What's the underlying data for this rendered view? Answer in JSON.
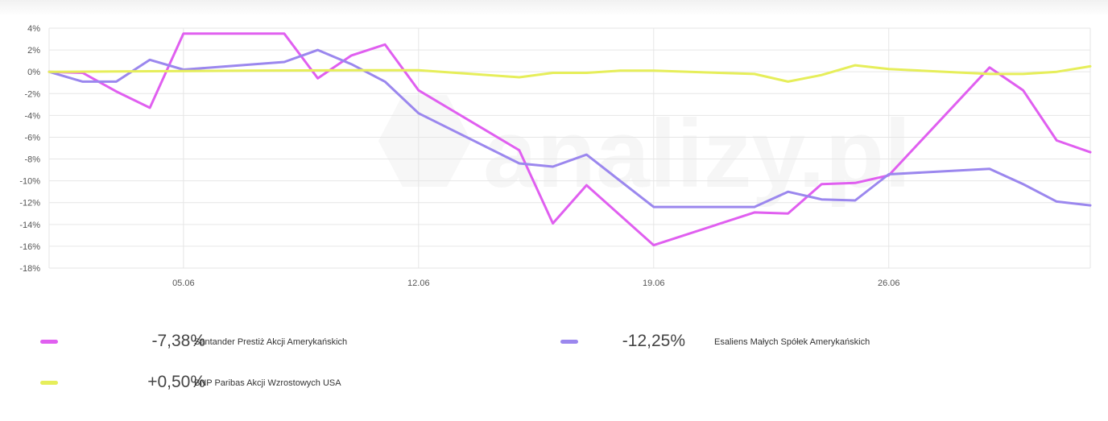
{
  "chart_data": {
    "type": "line",
    "title": "",
    "xlabel": "",
    "ylabel": "",
    "watermark": "analizy.pl",
    "x_dates": [
      "01.06",
      "02.06",
      "03.06",
      "04.06",
      "05.06",
      "06.06",
      "07.06",
      "08.06",
      "09.06",
      "10.06",
      "11.06",
      "12.06",
      "13.06",
      "14.06",
      "15.06",
      "16.06",
      "17.06",
      "18.06",
      "19.06",
      "20.06",
      "21.06",
      "22.06",
      "23.06",
      "24.06",
      "25.06",
      "26.06",
      "27.06",
      "28.06",
      "29.06",
      "30.06"
    ],
    "x_tick_labels": [
      "05.06",
      "12.06",
      "19.06",
      "26.06"
    ],
    "y_tick_labels": [
      "4%",
      "2%",
      "0%",
      "-2%",
      "-4%",
      "-6%",
      "-8%",
      "-10%",
      "-12%",
      "-14%",
      "-16%",
      "-18%"
    ],
    "ylim": [
      -18,
      4
    ],
    "grid": true,
    "legend_position": "bottom",
    "series": [
      {
        "name": "Santander Prestiż Akcji Amerykańskich",
        "value_label": "-7,38%",
        "color": "#e05ff0",
        "points": [
          [
            "01.06",
            0.0
          ],
          [
            "02.06",
            -0.1
          ],
          [
            "03.06",
            -1.8
          ],
          [
            "04.06",
            -3.3
          ],
          [
            "05.06",
            3.5
          ],
          [
            "08.06",
            3.5
          ],
          [
            "09.06",
            -0.6
          ],
          [
            "10.06",
            1.5
          ],
          [
            "11.06",
            2.5
          ],
          [
            "12.06",
            -1.7
          ],
          [
            "15.06",
            -7.2
          ],
          [
            "16.06",
            -13.9
          ],
          [
            "17.06",
            -10.4
          ],
          [
            "19.06",
            -15.9
          ],
          [
            "22.06",
            -12.9
          ],
          [
            "23.06",
            -13.0
          ],
          [
            "24.06",
            -10.3
          ],
          [
            "25.06",
            -10.2
          ],
          [
            "26.06",
            -9.5
          ],
          [
            "29.06",
            0.4
          ],
          [
            "30.06",
            -1.7
          ],
          [
            "01.07",
            -6.3
          ],
          [
            "02.07",
            -7.38
          ]
        ]
      },
      {
        "name": "Esaliens Małych Spółek Amerykańskich",
        "value_label": "-12,25%",
        "color": "#9b87ee",
        "points": [
          [
            "01.06",
            0.0
          ],
          [
            "02.06",
            -0.9
          ],
          [
            "03.06",
            -0.9
          ],
          [
            "04.06",
            1.1
          ],
          [
            "05.06",
            0.2
          ],
          [
            "08.06",
            0.9
          ],
          [
            "09.06",
            2.0
          ],
          [
            "10.06",
            0.7
          ],
          [
            "11.06",
            -0.9
          ],
          [
            "12.06",
            -3.8
          ],
          [
            "15.06",
            -8.4
          ],
          [
            "16.06",
            -8.7
          ],
          [
            "17.06",
            -7.6
          ],
          [
            "19.06",
            -12.4
          ],
          [
            "22.06",
            -12.4
          ],
          [
            "23.06",
            -11.0
          ],
          [
            "24.06",
            -11.7
          ],
          [
            "25.06",
            -11.8
          ],
          [
            "26.06",
            -9.4
          ],
          [
            "29.06",
            -8.9
          ],
          [
            "30.06",
            -10.3
          ],
          [
            "01.07",
            -11.9
          ],
          [
            "02.07",
            -12.25
          ]
        ]
      },
      {
        "name": "BNP Paribas Akcji Wzrostowych USA",
        "value_label": "+0,50%",
        "color": "#e6ee5a",
        "points": [
          [
            "01.06",
            0.0
          ],
          [
            "04.06",
            0.05
          ],
          [
            "07.06",
            0.1
          ],
          [
            "10.06",
            0.15
          ],
          [
            "12.06",
            0.15
          ],
          [
            "15.06",
            -0.5
          ],
          [
            "16.06",
            -0.1
          ],
          [
            "17.06",
            -0.1
          ],
          [
            "18.06",
            0.1
          ],
          [
            "19.06",
            0.1
          ],
          [
            "22.06",
            -0.2
          ],
          [
            "23.06",
            -0.9
          ],
          [
            "24.06",
            -0.3
          ],
          [
            "25.06",
            0.6
          ],
          [
            "26.06",
            0.25
          ],
          [
            "29.06",
            -0.2
          ],
          [
            "30.06",
            -0.2
          ],
          [
            "01.07",
            0.0
          ],
          [
            "02.07",
            0.5
          ]
        ]
      }
    ]
  }
}
